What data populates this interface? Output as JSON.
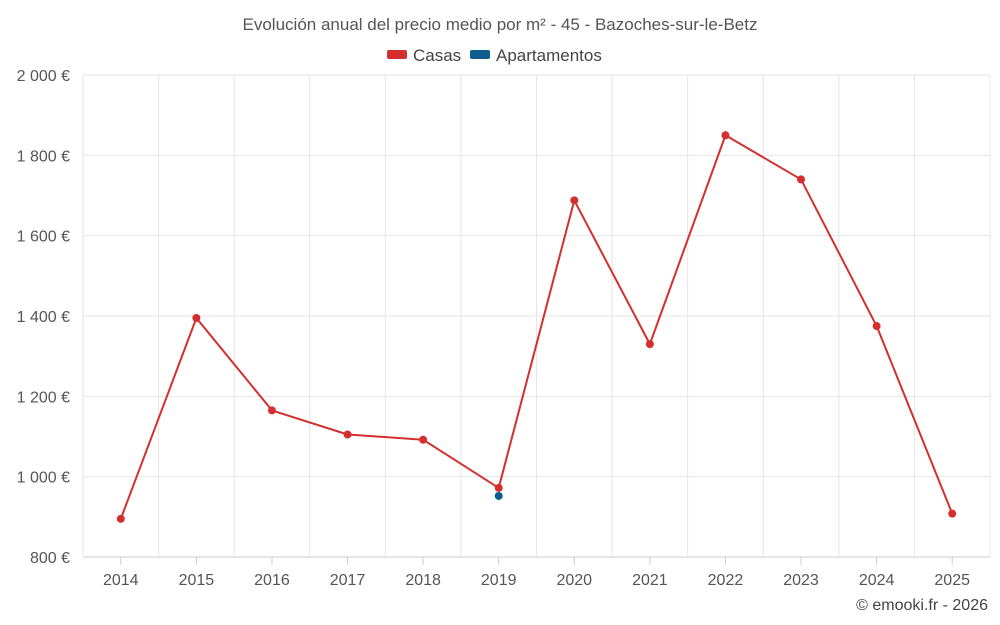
{
  "chart_data": {
    "type": "line",
    "title": "Evolución anual del precio medio por m² - 45 - Bazoches-sur-le-Betz",
    "categories": [
      "2014",
      "2015",
      "2016",
      "2017",
      "2018",
      "2019",
      "2020",
      "2021",
      "2022",
      "2023",
      "2024",
      "2025"
    ],
    "series": [
      {
        "name": "Casas",
        "color": "#d32f2f",
        "values": [
          895,
          1395,
          1165,
          1105,
          1092,
          972,
          1688,
          1330,
          1850,
          1740,
          1375,
          908
        ]
      },
      {
        "name": "Apartamentos",
        "color": "#0d5e8f",
        "values": [
          null,
          null,
          null,
          null,
          null,
          952,
          null,
          null,
          null,
          null,
          null,
          null
        ]
      }
    ],
    "ylim": [
      800,
      2000
    ],
    "yticks": [
      800,
      1000,
      1200,
      1400,
      1600,
      1800,
      2000
    ],
    "ytick_labels": [
      "800 €",
      "1 000 €",
      "1 200 €",
      "1 400 €",
      "1 600 €",
      "1 800 €",
      "2 000 €"
    ],
    "grid": true,
    "legend": "top-center",
    "xlabel": "",
    "ylabel": ""
  },
  "credit": "© emooki.fr - 2026"
}
